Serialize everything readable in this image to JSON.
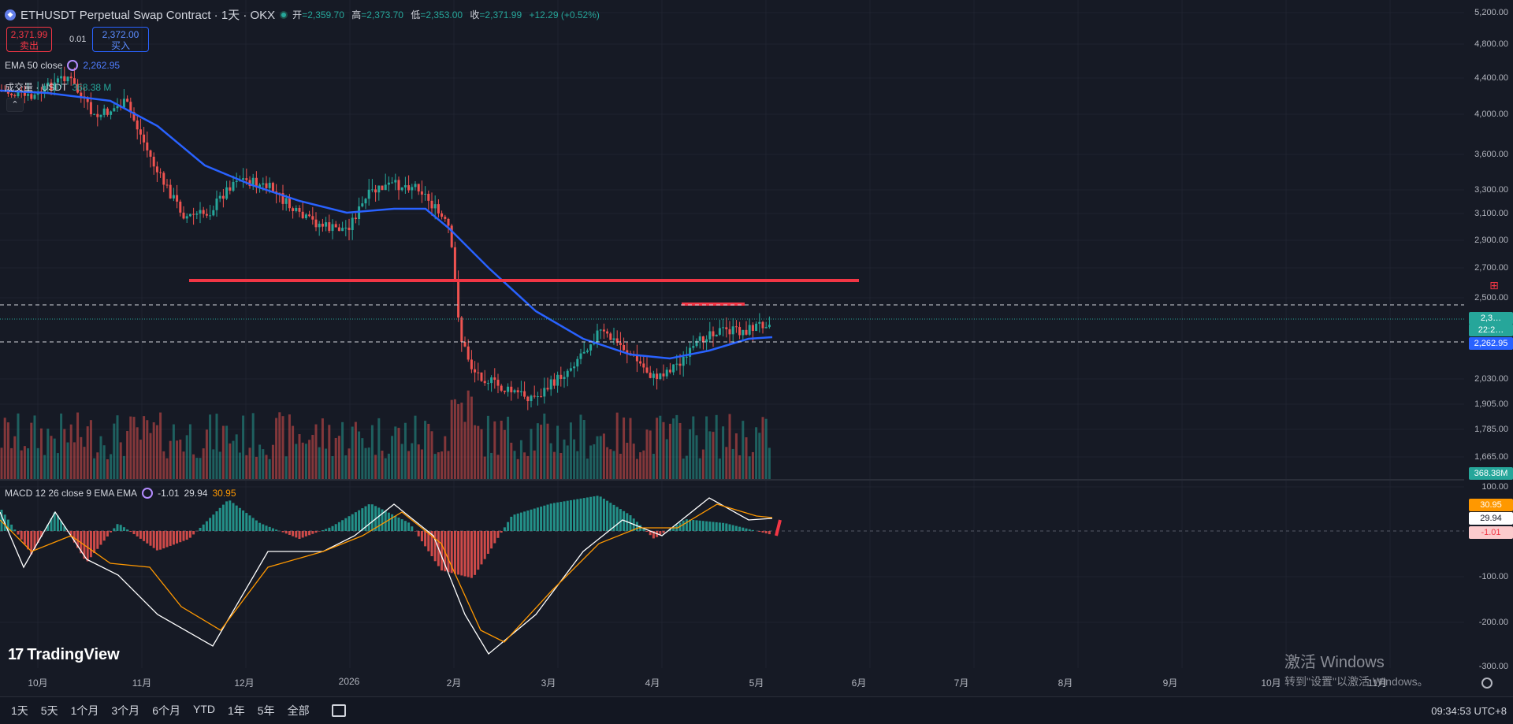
{
  "header": {
    "title": "ETHUSDT Perpetual Swap Contract · 1天 · OKX",
    "ohlc": [
      {
        "label": "开",
        "value": "=2,359.70"
      },
      {
        "label": "高",
        "value": "=2,373.70"
      },
      {
        "label": "低",
        "value": "=2,353.00"
      },
      {
        "label": "收",
        "value": "=2,371.99"
      }
    ],
    "change": "+12.29 (+0.52%)"
  },
  "trade": {
    "sell_price": "2,371.99",
    "sell_label": "卖出",
    "spread": "0.01",
    "buy_price": "2,372.00",
    "buy_label": "买入"
  },
  "indicators": {
    "ema_label": "EMA 50 close",
    "ema_value": "2,262.95",
    "volume_label": "成交量 · USDT",
    "volume_value": "368.38 M",
    "macd_label": "MACD 12 26 close 9 EMA EMA",
    "macd_hist": "-1.01",
    "macd_line": "29.94",
    "macd_signal": "30.95"
  },
  "price_axis": {
    "ticks": [
      "5,200.00",
      "4,800.00",
      "4,400.00",
      "4,000.00",
      "3,600.00",
      "3,300.00",
      "3,100.00",
      "2,900.00",
      "2,700.00",
      "2,500.00",
      "2,030.00",
      "1,905.00",
      "1,785.00",
      "1,665.00"
    ],
    "current_price_badge": "2,3…",
    "current_time_badge": "22:2…",
    "ema_badge": "2,262.95",
    "volume_badge": "368.38M",
    "macd_ticks": [
      "100.00",
      "-100.00",
      "-200.00",
      "-300.00"
    ],
    "macd_badges": [
      "30.95",
      "29.94",
      "-1.01"
    ]
  },
  "time_axis": {
    "labels": [
      "10月",
      "11月",
      "12月",
      "2026",
      "2月",
      "3月",
      "4月",
      "5月",
      "6月",
      "7月",
      "8月",
      "9月",
      "10月",
      "11月"
    ]
  },
  "toolbar": {
    "ranges": [
      "1天",
      "5天",
      "1个月",
      "3个月",
      "6个月",
      "YTD",
      "1年",
      "5年",
      "全部"
    ],
    "clock": "09:34:53 UTC+8"
  },
  "branding": {
    "logo_text": "TradingView",
    "logo_mark": "17"
  },
  "watermark": {
    "title": "激活 Windows",
    "subtitle": "转到\"设置\"以激活 Windows。"
  },
  "colors": {
    "up": "#26a69a",
    "down": "#ef5350",
    "ema": "#2962ff",
    "macd": "#ffffff",
    "signal": "#ff9800",
    "level": "#f23645"
  },
  "chart_data": {
    "type": "candlestick",
    "ema_period": 50,
    "level_lines": [
      2600,
      2470
    ],
    "current_price": 2371.99,
    "ema_last": 2262.95,
    "macd_range": [
      -300,
      100
    ]
  }
}
